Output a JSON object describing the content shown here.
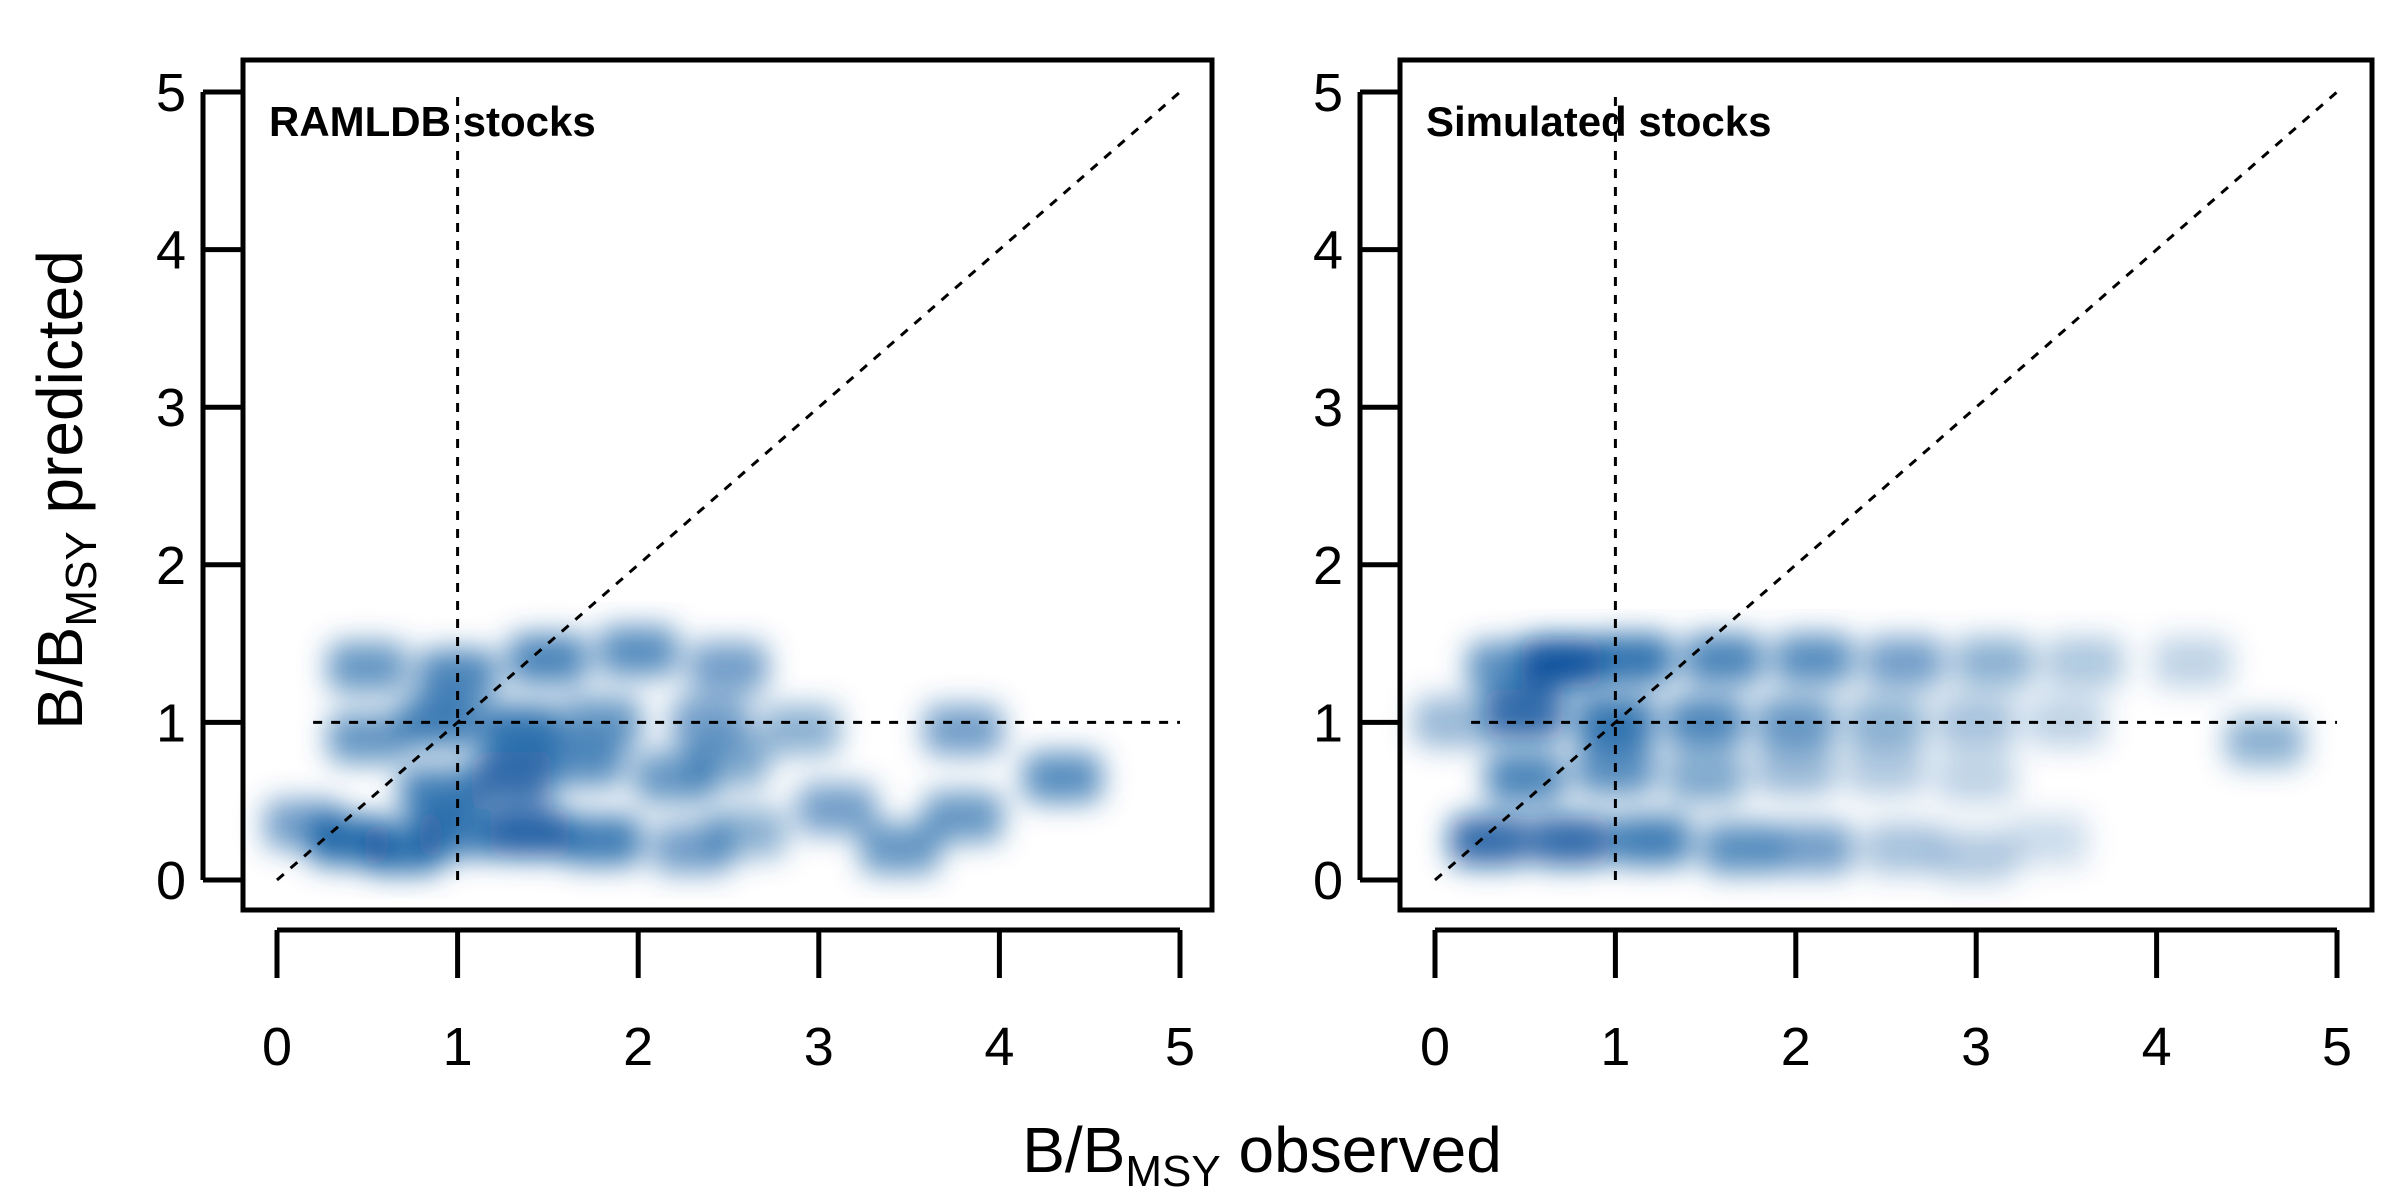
{
  "chart_data": [
    {
      "type": "heatmap",
      "title": "RAMLDB stocks",
      "xlim": [
        0,
        5
      ],
      "ylim": [
        0,
        5
      ],
      "x_ticks": [
        "0",
        "1",
        "2",
        "3",
        "4",
        "5"
      ],
      "y_ticks": [
        "0",
        "1",
        "2",
        "3",
        "4",
        "5"
      ],
      "reference_lines": {
        "vertical_x": 1,
        "horizontal_y": 1,
        "diagonal": "1:1"
      },
      "color": "#08519c",
      "density_blobs": [
        {
          "x": 0.4,
          "y": 0.25,
          "w": 0.8
        },
        {
          "x": 0.15,
          "y": 0.35,
          "w": 0.55
        },
        {
          "x": 0.7,
          "y": 0.2,
          "w": 0.8
        },
        {
          "x": 1.0,
          "y": 0.3,
          "w": 0.75
        },
        {
          "x": 1.4,
          "y": 0.3,
          "w": 0.9
        },
        {
          "x": 1.8,
          "y": 0.25,
          "w": 0.75
        },
        {
          "x": 2.3,
          "y": 0.2,
          "w": 0.55
        },
        {
          "x": 2.6,
          "y": 0.3,
          "w": 0.45
        },
        {
          "x": 0.9,
          "y": 0.55,
          "w": 0.75
        },
        {
          "x": 1.3,
          "y": 0.65,
          "w": 0.85
        },
        {
          "x": 1.7,
          "y": 0.75,
          "w": 0.65
        },
        {
          "x": 2.2,
          "y": 0.65,
          "w": 0.6
        },
        {
          "x": 2.5,
          "y": 0.75,
          "w": 0.5
        },
        {
          "x": 0.5,
          "y": 0.9,
          "w": 0.6
        },
        {
          "x": 0.9,
          "y": 1.0,
          "w": 0.75
        },
        {
          "x": 1.35,
          "y": 0.95,
          "w": 0.8
        },
        {
          "x": 1.8,
          "y": 1.0,
          "w": 0.6
        },
        {
          "x": 2.4,
          "y": 1.0,
          "w": 0.55
        },
        {
          "x": 2.9,
          "y": 0.95,
          "w": 0.45
        },
        {
          "x": 0.5,
          "y": 1.35,
          "w": 0.6
        },
        {
          "x": 1.0,
          "y": 1.3,
          "w": 0.7
        },
        {
          "x": 1.5,
          "y": 1.4,
          "w": 0.7
        },
        {
          "x": 2.0,
          "y": 1.45,
          "w": 0.65
        },
        {
          "x": 2.5,
          "y": 1.35,
          "w": 0.55
        },
        {
          "x": 3.1,
          "y": 0.45,
          "w": 0.55
        },
        {
          "x": 3.45,
          "y": 0.2,
          "w": 0.6
        },
        {
          "x": 3.8,
          "y": 0.95,
          "w": 0.55
        },
        {
          "x": 3.8,
          "y": 0.4,
          "w": 0.6
        },
        {
          "x": 4.35,
          "y": 0.65,
          "w": 0.65
        }
      ]
    },
    {
      "type": "heatmap",
      "title": "Simulated stocks",
      "xlim": [
        0,
        5
      ],
      "ylim": [
        0,
        5
      ],
      "x_ticks": [
        "0",
        "1",
        "2",
        "3",
        "4",
        "5"
      ],
      "y_ticks": [
        "0",
        "1",
        "2",
        "3",
        "4",
        "5"
      ],
      "reference_lines": {
        "vertical_x": 1,
        "horizontal_y": 1,
        "diagonal": "1:1"
      },
      "color": "#08519c",
      "density_blobs": [
        {
          "x": 0.7,
          "y": 1.38,
          "w": 1.0
        },
        {
          "x": 0.4,
          "y": 1.35,
          "w": 0.65
        },
        {
          "x": 1.1,
          "y": 1.4,
          "w": 0.8
        },
        {
          "x": 1.6,
          "y": 1.4,
          "w": 0.7
        },
        {
          "x": 2.1,
          "y": 1.4,
          "w": 0.65
        },
        {
          "x": 2.6,
          "y": 1.38,
          "w": 0.55
        },
        {
          "x": 3.1,
          "y": 1.38,
          "w": 0.45
        },
        {
          "x": 3.6,
          "y": 1.38,
          "w": 0.32
        },
        {
          "x": 4.2,
          "y": 1.38,
          "w": 0.25
        },
        {
          "x": 0.5,
          "y": 1.05,
          "w": 0.85
        },
        {
          "x": 0.1,
          "y": 1.0,
          "w": 0.4
        },
        {
          "x": 1.0,
          "y": 1.0,
          "w": 0.8
        },
        {
          "x": 1.5,
          "y": 1.0,
          "w": 0.7
        },
        {
          "x": 2.0,
          "y": 1.0,
          "w": 0.6
        },
        {
          "x": 2.5,
          "y": 1.0,
          "w": 0.45
        },
        {
          "x": 3.0,
          "y": 1.0,
          "w": 0.35
        },
        {
          "x": 3.5,
          "y": 1.0,
          "w": 0.25
        },
        {
          "x": 0.5,
          "y": 0.65,
          "w": 0.7
        },
        {
          "x": 1.0,
          "y": 0.7,
          "w": 0.65
        },
        {
          "x": 1.5,
          "y": 0.65,
          "w": 0.5
        },
        {
          "x": 2.0,
          "y": 0.7,
          "w": 0.4
        },
        {
          "x": 2.5,
          "y": 0.7,
          "w": 0.3
        },
        {
          "x": 3.0,
          "y": 0.65,
          "w": 0.25
        },
        {
          "x": 0.3,
          "y": 0.25,
          "w": 0.85
        },
        {
          "x": 0.75,
          "y": 0.25,
          "w": 0.85
        },
        {
          "x": 1.2,
          "y": 0.25,
          "w": 0.75
        },
        {
          "x": 1.7,
          "y": 0.2,
          "w": 0.65
        },
        {
          "x": 2.1,
          "y": 0.2,
          "w": 0.55
        },
        {
          "x": 2.6,
          "y": 0.2,
          "w": 0.35
        },
        {
          "x": 3.0,
          "y": 0.15,
          "w": 0.3
        },
        {
          "x": 3.4,
          "y": 0.25,
          "w": 0.2
        },
        {
          "x": 4.6,
          "y": 0.88,
          "w": 0.45
        }
      ]
    }
  ],
  "axes": {
    "y_title_main": "B/B",
    "y_title_sub": "MSY",
    "y_title_rest": " predicted",
    "x_title_main": "B/B",
    "x_title_sub": "MSY",
    "x_title_rest": " observed"
  }
}
